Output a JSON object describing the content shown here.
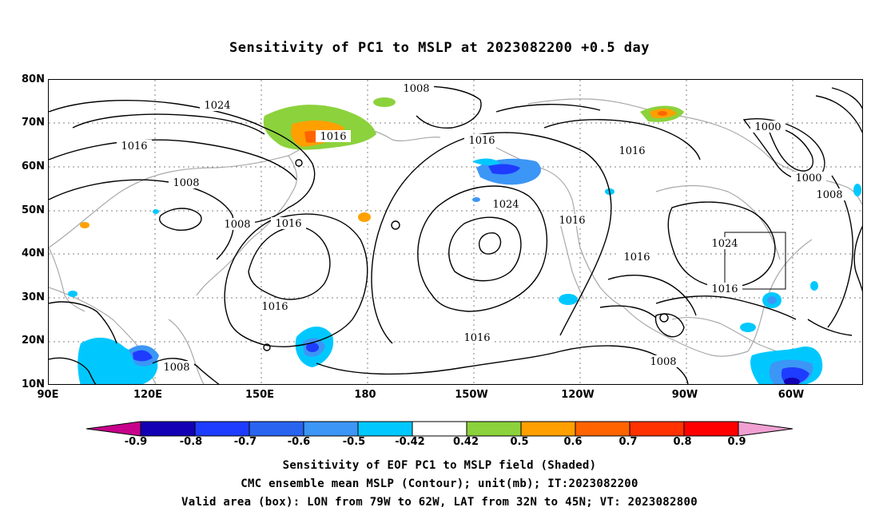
{
  "title": "Sensitivity of PC1 to MSLP at 2023082200 +0.5 day",
  "map": {
    "lat_labels": [
      "80N",
      "70N",
      "60N",
      "50N",
      "40N",
      "30N",
      "20N",
      "10N"
    ],
    "lon_labels": [
      "90E",
      "120E",
      "150E",
      "180",
      "150W",
      "120W",
      "90W",
      "60W"
    ],
    "contour_labels": [
      "1024",
      "1016",
      "1008",
      "1008",
      "1008",
      "1016",
      "1016",
      "1016",
      "1024",
      "1016",
      "1016",
      "1016",
      "1000",
      "1000",
      "1008",
      "1024",
      "1016",
      "1016",
      "1008",
      "1008",
      "1016"
    ],
    "valid_box": {
      "lon": [
        -79,
        -62
      ],
      "lat": [
        32,
        45
      ]
    },
    "colors": {
      "contour": "#000000",
      "coast": "#a9a9a9",
      "grid": "#808080",
      "box": "#000000"
    }
  },
  "colorbar": {
    "labels": [
      "-0.9",
      "-0.8",
      "-0.7",
      "-0.6",
      "-0.5",
      "-0.42",
      "0.42",
      "0.5",
      "0.6",
      "0.7",
      "0.8",
      "0.9"
    ],
    "colors": [
      "#c8008c",
      "#1400b4",
      "#1e3cff",
      "#2864f0",
      "#3c96f5",
      "#00c8ff",
      "#ffffff",
      "#8cd23c",
      "#ffa000",
      "#ff6400",
      "#ff3200",
      "#ff0000",
      "#f0a0d2"
    ]
  },
  "footer": {
    "line1": "Sensitivity of EOF PC1 to MSLP field (Shaded)",
    "line2": "CMC ensemble mean MSLP (Contour); unit(mb); IT:2023082200",
    "line3": "Valid area (box): LON from 79W to 62W, LAT from 32N to 45N; VT: 2023082800"
  }
}
